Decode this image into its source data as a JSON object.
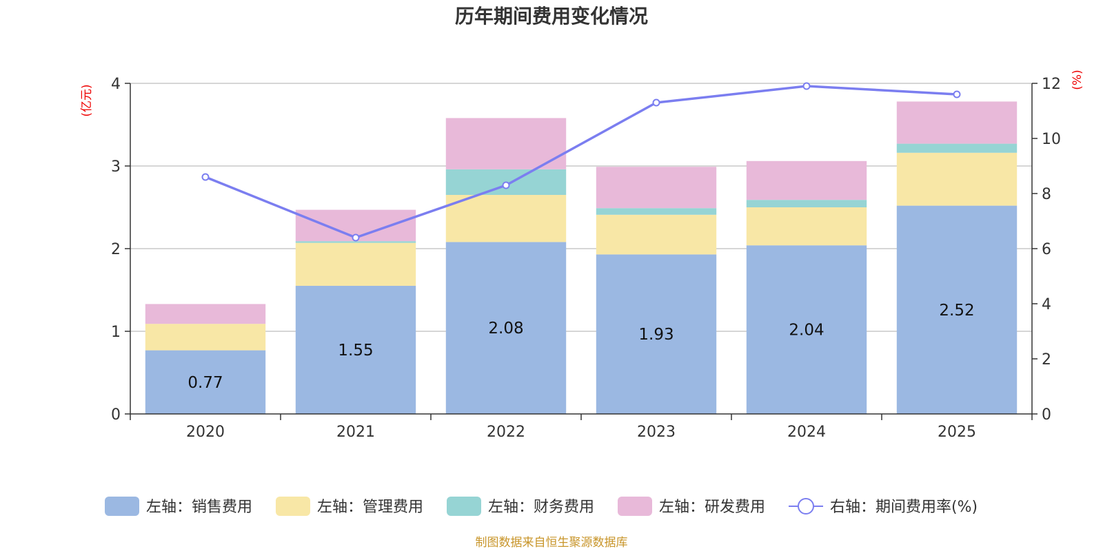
{
  "chart_data": {
    "type": "bar",
    "title": "历年期间费用变化情况",
    "categories": [
      "2020",
      "2021",
      "2022",
      "2023",
      "2024",
      "2025"
    ],
    "left_axis": {
      "unit": "(亿元)",
      "ylim": [
        0,
        4
      ],
      "ticks": [
        "0",
        "1",
        "2",
        "3",
        "4"
      ]
    },
    "right_axis": {
      "unit": "(%)",
      "ylim": [
        0,
        12
      ],
      "ticks": [
        "0",
        "2",
        "4",
        "6",
        "8",
        "10",
        "12"
      ]
    },
    "series": [
      {
        "name": "左轴：销售费用",
        "kind": "bar",
        "axis": "left",
        "color": "#9bb8e2",
        "values": [
          0.77,
          1.55,
          2.08,
          1.93,
          2.04,
          2.52
        ],
        "labels": [
          "0.77",
          "1.55",
          "2.08",
          "1.93",
          "2.04",
          "2.52"
        ]
      },
      {
        "name": "左轴：管理费用",
        "kind": "bar",
        "axis": "left",
        "color": "#f8e7a6",
        "values": [
          0.32,
          0.52,
          0.57,
          0.48,
          0.46,
          0.64
        ]
      },
      {
        "name": "左轴：财务费用",
        "kind": "bar",
        "axis": "left",
        "color": "#96d4d4",
        "values": [
          0.0,
          0.02,
          0.31,
          0.08,
          0.09,
          0.11
        ]
      },
      {
        "name": "左轴：研发费用",
        "kind": "bar",
        "axis": "left",
        "color": "#e8b9d9",
        "values": [
          0.24,
          0.38,
          0.62,
          0.5,
          0.47,
          0.51
        ]
      },
      {
        "name": "右轴：期间费用率(%)",
        "kind": "line",
        "axis": "right",
        "color": "#7b7ef0",
        "values": [
          8.6,
          6.4,
          8.3,
          11.3,
          11.9,
          11.6
        ]
      }
    ],
    "legend_position": "bottom",
    "source": "制图数据来自恒生聚源数据库"
  }
}
